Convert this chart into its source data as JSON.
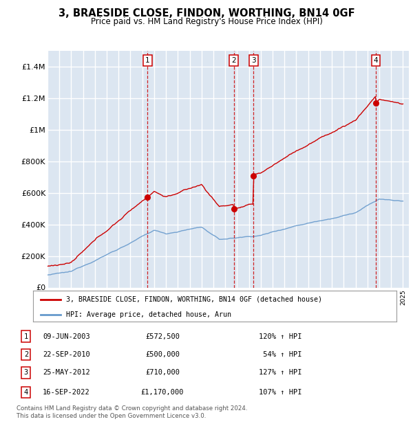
{
  "title": "3, BRAESIDE CLOSE, FINDON, WORTHING, BN14 0GF",
  "subtitle": "Price paid vs. HM Land Registry's House Price Index (HPI)",
  "legend_house": "3, BRAESIDE CLOSE, FINDON, WORTHING, BN14 0GF (detached house)",
  "legend_hpi": "HPI: Average price, detached house, Arun",
  "footer": "Contains HM Land Registry data © Crown copyright and database right 2024.\nThis data is licensed under the Open Government Licence v3.0.",
  "transactions": [
    {
      "num": 1,
      "date": "09-JUN-2003",
      "price": "£572,500",
      "pct": "120%",
      "dir": "↑",
      "year": 2003.44
    },
    {
      "num": 2,
      "date": "22-SEP-2010",
      "price": "£500,000",
      "pct": "54%",
      "dir": "↑",
      "year": 2010.72
    },
    {
      "num": 3,
      "date": "25-MAY-2012",
      "price": "£710,000",
      "pct": "127%",
      "dir": "↑",
      "year": 2012.39
    },
    {
      "num": 4,
      "date": "16-SEP-2022",
      "price": "£1,170,000",
      "pct": "107%",
      "dir": "↑",
      "year": 2022.71
    }
  ],
  "transaction_prices": [
    572500,
    500000,
    710000,
    1170000
  ],
  "ylim": [
    0,
    1500000
  ],
  "yticks": [
    0,
    200000,
    400000,
    600000,
    800000,
    1000000,
    1200000,
    1400000
  ],
  "ytick_labels": [
    "£0",
    "£200K",
    "£400K",
    "£600K",
    "£800K",
    "£1M",
    "£1.2M",
    "£1.4M"
  ],
  "bg_color": "#dce6f1",
  "grid_color": "#ffffff",
  "house_line_color": "#cc0000",
  "hpi_line_color": "#6699cc",
  "dashed_color": "#cc0000",
  "box_color": "#cc0000"
}
